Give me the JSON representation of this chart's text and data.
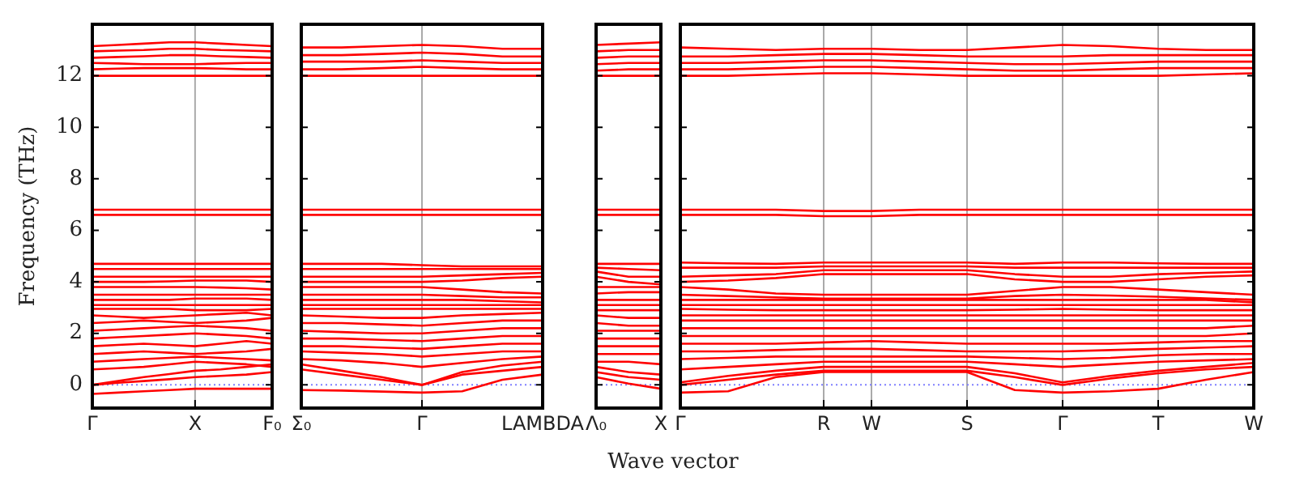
{
  "chart_data": [
    {
      "type": "line",
      "ylabel": "Frequency (THz)",
      "categories": [
        "Γ",
        null,
        null,
        null,
        "X",
        null,
        null,
        "F₀"
      ],
      "ylim": [
        -0.9,
        14
      ],
      "yticks": [
        0,
        2,
        4,
        6,
        8,
        10,
        12
      ],
      "marker": "none",
      "ref_lines": [
        {
          "axis": "x",
          "value": "X",
          "color": "#aaaaaa",
          "line_style": "solid"
        },
        {
          "axis": "y",
          "value": 0,
          "color": "#7f7fff",
          "line_style": "dotted"
        }
      ],
      "series": [
        {
          "color": "#ff0000",
          "values": [
            -0.35,
            -0.3,
            -0.25,
            -0.2,
            -0.15,
            -0.15,
            -0.15,
            -0.15
          ]
        },
        {
          "color": "#ff0000",
          "values": [
            0,
            0.08,
            0.15,
            0.22,
            0.3,
            0.35,
            0.4,
            0.5
          ]
        },
        {
          "color": "#ff0000",
          "values": [
            0,
            0.15,
            0.3,
            0.42,
            0.55,
            0.6,
            0.7,
            0.8
          ]
        },
        {
          "color": "#ff0000",
          "values": [
            0.6,
            0.65,
            0.7,
            0.8,
            0.9,
            0.85,
            0.8,
            0.7
          ]
        },
        {
          "color": "#ff0000",
          "values": [
            0.9,
            0.95,
            1.0,
            1.05,
            1.1,
            1.05,
            1.0,
            0.95
          ]
        },
        {
          "color": "#ff0000",
          "values": [
            1.2,
            1.25,
            1.3,
            1.25,
            1.2,
            1.25,
            1.3,
            1.4
          ]
        },
        {
          "color": "#ff0000",
          "values": [
            1.5,
            1.55,
            1.6,
            1.55,
            1.5,
            1.6,
            1.7,
            1.6
          ]
        },
        {
          "color": "#ff0000",
          "values": [
            1.8,
            1.85,
            1.9,
            1.95,
            2.0,
            1.95,
            1.9,
            1.8
          ]
        },
        {
          "color": "#ff0000",
          "values": [
            2.1,
            2.15,
            2.2,
            2.25,
            2.3,
            2.25,
            2.2,
            2.1
          ]
        },
        {
          "color": "#ff0000",
          "values": [
            2.4,
            2.45,
            2.5,
            2.45,
            2.4,
            2.45,
            2.5,
            2.6
          ]
        },
        {
          "color": "#ff0000",
          "values": [
            2.7,
            2.65,
            2.6,
            2.65,
            2.7,
            2.75,
            2.8,
            2.7
          ]
        },
        {
          "color": "#ff0000",
          "values": [
            2.95,
            2.95,
            2.95,
            2.95,
            2.9,
            2.9,
            2.9,
            2.95
          ]
        },
        {
          "color": "#ff0000",
          "values": [
            3.1,
            3.1,
            3.1,
            3.1,
            3.1,
            3.1,
            3.1,
            3.1
          ]
        },
        {
          "color": "#ff0000",
          "values": [
            3.3,
            3.3,
            3.3,
            3.3,
            3.35,
            3.35,
            3.35,
            3.3
          ]
        },
        {
          "color": "#ff0000",
          "values": [
            3.5,
            3.5,
            3.5,
            3.5,
            3.5,
            3.5,
            3.5,
            3.5
          ]
        },
        {
          "color": "#ff0000",
          "values": [
            3.8,
            3.8,
            3.8,
            3.8,
            3.8,
            3.78,
            3.75,
            3.7
          ]
        },
        {
          "color": "#ff0000",
          "values": [
            4.0,
            4.0,
            4.0,
            4.02,
            4.05,
            4.05,
            4.05,
            4.0
          ]
        },
        {
          "color": "#ff0000",
          "values": [
            4.2,
            4.2,
            4.2,
            4.2,
            4.2,
            4.2,
            4.2,
            4.2
          ]
        },
        {
          "color": "#ff0000",
          "values": [
            4.5,
            4.5,
            4.5,
            4.5,
            4.5,
            4.5,
            4.5,
            4.5
          ]
        },
        {
          "color": "#ff0000",
          "values": [
            4.7,
            4.7,
            4.7,
            4.7,
            4.7,
            4.7,
            4.7,
            4.7
          ]
        },
        {
          "color": "#ff0000",
          "values": [
            6.6,
            6.6,
            6.6,
            6.6,
            6.6,
            6.6,
            6.6,
            6.6
          ]
        },
        {
          "color": "#ff0000",
          "values": [
            6.8,
            6.8,
            6.8,
            6.8,
            6.8,
            6.8,
            6.8,
            6.8
          ]
        },
        {
          "color": "#ff0000",
          "values": [
            12.0,
            12.0,
            12.0,
            12.0,
            12.0,
            12.0,
            12.0,
            12.0
          ]
        },
        {
          "color": "#ff0000",
          "values": [
            12.25,
            12.28,
            12.3,
            12.3,
            12.3,
            12.28,
            12.25,
            12.25
          ]
        },
        {
          "color": "#ff0000",
          "values": [
            12.5,
            12.48,
            12.45,
            12.45,
            12.45,
            12.48,
            12.5,
            12.5
          ]
        },
        {
          "color": "#ff0000",
          "values": [
            12.7,
            12.73,
            12.76,
            12.8,
            12.8,
            12.76,
            12.73,
            12.7
          ]
        },
        {
          "color": "#ff0000",
          "values": [
            12.95,
            12.98,
            13.0,
            13.05,
            13.05,
            13.0,
            12.98,
            12.95
          ]
        },
        {
          "color": "#ff0000",
          "values": [
            13.15,
            13.2,
            13.25,
            13.3,
            13.3,
            13.25,
            13.2,
            13.15
          ]
        }
      ]
    },
    {
      "type": "line",
      "categories": [
        "Σ₀",
        null,
        null,
        "Γ",
        null,
        null,
        "LAMBDA"
      ],
      "ylim": [
        -0.9,
        14
      ],
      "yticks": [
        0,
        2,
        4,
        6,
        8,
        10,
        12
      ],
      "tick_labels": "x",
      "marker": "none",
      "ref_lines": [
        {
          "axis": "x",
          "value": "Γ",
          "color": "#aaaaaa",
          "line_style": "solid"
        },
        {
          "axis": "y",
          "value": 0,
          "color": "#7f7fff",
          "line_style": "dotted"
        }
      ],
      "series": [
        {
          "color": "#ff0000",
          "values": [
            -0.2,
            -0.22,
            -0.26,
            -0.3,
            -0.25,
            0.2,
            0.4
          ]
        },
        {
          "color": "#ff0000",
          "values": [
            0.6,
            0.4,
            0.2,
            0,
            0.4,
            0.55,
            0.7
          ]
        },
        {
          "color": "#ff0000",
          "values": [
            0.8,
            0.55,
            0.3,
            0,
            0.5,
            0.75,
            0.9
          ]
        },
        {
          "color": "#ff0000",
          "values": [
            1.0,
            0.95,
            0.85,
            0.7,
            0.85,
            1.0,
            1.1
          ]
        },
        {
          "color": "#ff0000",
          "values": [
            1.3,
            1.25,
            1.2,
            1.1,
            1.2,
            1.3,
            1.3
          ]
        },
        {
          "color": "#ff0000",
          "values": [
            1.5,
            1.5,
            1.45,
            1.4,
            1.5,
            1.6,
            1.6
          ]
        },
        {
          "color": "#ff0000",
          "values": [
            1.8,
            1.8,
            1.75,
            1.7,
            1.8,
            1.9,
            1.9
          ]
        },
        {
          "color": "#ff0000",
          "values": [
            2.1,
            2.05,
            2.0,
            2.0,
            2.1,
            2.2,
            2.2
          ]
        },
        {
          "color": "#ff0000",
          "values": [
            2.4,
            2.4,
            2.35,
            2.3,
            2.4,
            2.5,
            2.5
          ]
        },
        {
          "color": "#ff0000",
          "values": [
            2.7,
            2.65,
            2.6,
            2.6,
            2.7,
            2.75,
            2.8
          ]
        },
        {
          "color": "#ff0000",
          "values": [
            2.95,
            2.95,
            2.95,
            2.95,
            2.95,
            2.95,
            2.95
          ]
        },
        {
          "color": "#ff0000",
          "values": [
            3.1,
            3.1,
            3.1,
            3.1,
            3.1,
            3.1,
            3.1
          ]
        },
        {
          "color": "#ff0000",
          "values": [
            3.3,
            3.3,
            3.3,
            3.3,
            3.3,
            3.25,
            3.2
          ]
        },
        {
          "color": "#ff0000",
          "values": [
            3.5,
            3.5,
            3.5,
            3.5,
            3.45,
            3.4,
            3.4
          ]
        },
        {
          "color": "#ff0000",
          "values": [
            3.8,
            3.8,
            3.8,
            3.8,
            3.7,
            3.6,
            3.55
          ]
        },
        {
          "color": "#ff0000",
          "values": [
            4.0,
            4.0,
            4.0,
            4.0,
            4.05,
            4.15,
            4.2
          ]
        },
        {
          "color": "#ff0000",
          "values": [
            4.2,
            4.2,
            4.2,
            4.2,
            4.25,
            4.3,
            4.35
          ]
        },
        {
          "color": "#ff0000",
          "values": [
            4.5,
            4.5,
            4.5,
            4.5,
            4.5,
            4.5,
            4.5
          ]
        },
        {
          "color": "#ff0000",
          "values": [
            4.7,
            4.7,
            4.7,
            4.65,
            4.6,
            4.6,
            4.6
          ]
        },
        {
          "color": "#ff0000",
          "values": [
            6.6,
            6.6,
            6.6,
            6.6,
            6.6,
            6.6,
            6.6
          ]
        },
        {
          "color": "#ff0000",
          "values": [
            6.8,
            6.8,
            6.8,
            6.8,
            6.8,
            6.8,
            6.8
          ]
        },
        {
          "color": "#ff0000",
          "values": [
            12.0,
            12.0,
            12.0,
            12.0,
            12.0,
            12.0,
            12.0
          ]
        },
        {
          "color": "#ff0000",
          "values": [
            12.25,
            12.25,
            12.3,
            12.35,
            12.3,
            12.25,
            12.25
          ]
        },
        {
          "color": "#ff0000",
          "values": [
            12.55,
            12.55,
            12.55,
            12.6,
            12.55,
            12.5,
            12.5
          ]
        },
        {
          "color": "#ff0000",
          "values": [
            12.8,
            12.8,
            12.85,
            12.9,
            12.85,
            12.75,
            12.75
          ]
        },
        {
          "color": "#ff0000",
          "values": [
            13.1,
            13.1,
            13.15,
            13.2,
            13.15,
            13.05,
            13.05
          ]
        }
      ]
    },
    {
      "type": "line",
      "categories": [
        "Λ₀",
        null,
        "X"
      ],
      "ylim": [
        -0.9,
        14
      ],
      "yticks": [
        0,
        2,
        4,
        6,
        8,
        10,
        12
      ],
      "tick_labels": "x",
      "marker": "none",
      "ref_lines": [
        {
          "axis": "y",
          "value": 0,
          "color": "#7f7fff",
          "line_style": "dotted"
        }
      ],
      "series": [
        {
          "color": "#ff0000",
          "values": [
            0.3,
            0.05,
            -0.15
          ]
        },
        {
          "color": "#ff0000",
          "values": [
            0.5,
            0.3,
            0.2
          ]
        },
        {
          "color": "#ff0000",
          "values": [
            0.7,
            0.5,
            0.4
          ]
        },
        {
          "color": "#ff0000",
          "values": [
            0.9,
            0.9,
            0.8
          ]
        },
        {
          "color": "#ff0000",
          "values": [
            1.2,
            1.2,
            1.2
          ]
        },
        {
          "color": "#ff0000",
          "values": [
            1.5,
            1.5,
            1.5
          ]
        },
        {
          "color": "#ff0000",
          "values": [
            1.8,
            1.8,
            1.8
          ]
        },
        {
          "color": "#ff0000",
          "values": [
            2.1,
            2.1,
            2.1
          ]
        },
        {
          "color": "#ff0000",
          "values": [
            2.4,
            2.3,
            2.3
          ]
        },
        {
          "color": "#ff0000",
          "values": [
            2.7,
            2.6,
            2.6
          ]
        },
        {
          "color": "#ff0000",
          "values": [
            2.9,
            2.9,
            2.9
          ]
        },
        {
          "color": "#ff0000",
          "values": [
            3.1,
            3.1,
            3.1
          ]
        },
        {
          "color": "#ff0000",
          "values": [
            3.3,
            3.3,
            3.3
          ]
        },
        {
          "color": "#ff0000",
          "values": [
            3.55,
            3.6,
            3.6
          ]
        },
        {
          "color": "#ff0000",
          "values": [
            3.8,
            3.8,
            3.8
          ]
        },
        {
          "color": "#ff0000",
          "values": [
            4.2,
            4.0,
            3.9
          ]
        },
        {
          "color": "#ff0000",
          "values": [
            4.4,
            4.2,
            4.2
          ]
        },
        {
          "color": "#ff0000",
          "values": [
            4.55,
            4.5,
            4.45
          ]
        },
        {
          "color": "#ff0000",
          "values": [
            4.7,
            4.7,
            4.7
          ]
        },
        {
          "color": "#ff0000",
          "values": [
            6.6,
            6.6,
            6.6
          ]
        },
        {
          "color": "#ff0000",
          "values": [
            6.8,
            6.8,
            6.8
          ]
        },
        {
          "color": "#ff0000",
          "values": [
            12.0,
            12.0,
            12.0
          ]
        },
        {
          "color": "#ff0000",
          "values": [
            12.2,
            12.25,
            12.25
          ]
        },
        {
          "color": "#ff0000",
          "values": [
            12.45,
            12.5,
            12.5
          ]
        },
        {
          "color": "#ff0000",
          "values": [
            12.7,
            12.75,
            12.75
          ]
        },
        {
          "color": "#ff0000",
          "values": [
            12.95,
            13.0,
            13.0
          ]
        },
        {
          "color": "#ff0000",
          "values": [
            13.2,
            13.25,
            13.3
          ]
        }
      ]
    },
    {
      "type": "line",
      "xlabel": "Wave vector",
      "categories": [
        "Γ",
        null,
        null,
        "R",
        "W",
        null,
        "S",
        null,
        "Γ",
        null,
        "T",
        null,
        "W"
      ],
      "ylim": [
        -0.9,
        14
      ],
      "yticks": [
        0,
        2,
        4,
        6,
        8,
        10,
        12
      ],
      "tick_labels": "x",
      "grid": "x",
      "marker": "none",
      "ref_lines": [
        {
          "axis": "y",
          "value": 0,
          "color": "#7f7fff",
          "line_style": "dotted"
        }
      ],
      "series": [
        {
          "color": "#ff0000",
          "values": [
            -0.3,
            -0.25,
            0.3,
            0.5,
            0.5,
            0.5,
            0.5,
            -0.2,
            -0.3,
            -0.25,
            -0.15,
            0.2,
            0.5
          ]
        },
        {
          "color": "#ff0000",
          "values": [
            0,
            0.2,
            0.4,
            0.55,
            0.55,
            0.55,
            0.55,
            0.3,
            0,
            0.25,
            0.45,
            0.6,
            0.7
          ]
        },
        {
          "color": "#ff0000",
          "values": [
            0.1,
            0.35,
            0.55,
            0.7,
            0.7,
            0.7,
            0.7,
            0.45,
            0.1,
            0.35,
            0.55,
            0.7,
            0.85
          ]
        },
        {
          "color": "#ff0000",
          "values": [
            0.6,
            0.7,
            0.8,
            0.9,
            0.9,
            0.9,
            0.9,
            0.8,
            0.7,
            0.8,
            0.9,
            0.95,
            1.0
          ]
        },
        {
          "color": "#ff0000",
          "values": [
            1.0,
            1.05,
            1.1,
            1.1,
            1.1,
            1.1,
            1.1,
            1.05,
            1.0,
            1.05,
            1.15,
            1.2,
            1.2
          ]
        },
        {
          "color": "#ff0000",
          "values": [
            1.3,
            1.3,
            1.35,
            1.4,
            1.4,
            1.35,
            1.3,
            1.3,
            1.3,
            1.35,
            1.4,
            1.45,
            1.5
          ]
        },
        {
          "color": "#ff0000",
          "values": [
            1.6,
            1.6,
            1.6,
            1.65,
            1.7,
            1.65,
            1.6,
            1.6,
            1.6,
            1.6,
            1.65,
            1.7,
            1.7
          ]
        },
        {
          "color": "#ff0000",
          "values": [
            1.9,
            1.9,
            1.9,
            1.9,
            1.9,
            1.9,
            1.9,
            1.9,
            1.9,
            1.9,
            1.9,
            1.9,
            2.0
          ]
        },
        {
          "color": "#ff0000",
          "values": [
            2.2,
            2.2,
            2.2,
            2.2,
            2.2,
            2.2,
            2.2,
            2.2,
            2.2,
            2.2,
            2.2,
            2.2,
            2.3
          ]
        },
        {
          "color": "#ff0000",
          "values": [
            2.5,
            2.5,
            2.5,
            2.5,
            2.5,
            2.5,
            2.5,
            2.5,
            2.5,
            2.5,
            2.5,
            2.5,
            2.5
          ]
        },
        {
          "color": "#ff0000",
          "values": [
            2.7,
            2.7,
            2.7,
            2.7,
            2.7,
            2.7,
            2.7,
            2.7,
            2.7,
            2.7,
            2.7,
            2.7,
            2.7
          ]
        },
        {
          "color": "#ff0000",
          "values": [
            2.95,
            2.92,
            2.9,
            2.9,
            2.9,
            2.9,
            2.9,
            2.92,
            2.95,
            2.92,
            2.9,
            2.9,
            2.9
          ]
        },
        {
          "color": "#ff0000",
          "values": [
            3.1,
            3.1,
            3.1,
            3.1,
            3.1,
            3.1,
            3.1,
            3.1,
            3.1,
            3.1,
            3.1,
            3.1,
            3.1
          ]
        },
        {
          "color": "#ff0000",
          "values": [
            3.3,
            3.3,
            3.3,
            3.3,
            3.3,
            3.3,
            3.3,
            3.3,
            3.3,
            3.3,
            3.3,
            3.3,
            3.2
          ]
        },
        {
          "color": "#ff0000",
          "values": [
            3.5,
            3.45,
            3.4,
            3.35,
            3.35,
            3.35,
            3.35,
            3.45,
            3.5,
            3.47,
            3.42,
            3.36,
            3.3
          ]
        },
        {
          "color": "#ff0000",
          "values": [
            3.8,
            3.7,
            3.55,
            3.5,
            3.5,
            3.5,
            3.5,
            3.65,
            3.8,
            3.8,
            3.7,
            3.6,
            3.5
          ]
        },
        {
          "color": "#ff0000",
          "values": [
            4.0,
            4.05,
            4.15,
            4.3,
            4.3,
            4.3,
            4.3,
            4.1,
            4.0,
            4.0,
            4.1,
            4.2,
            4.25
          ]
        },
        {
          "color": "#ff0000",
          "values": [
            4.2,
            4.25,
            4.3,
            4.45,
            4.45,
            4.45,
            4.45,
            4.3,
            4.2,
            4.2,
            4.3,
            4.35,
            4.4
          ]
        },
        {
          "color": "#ff0000",
          "values": [
            4.55,
            4.55,
            4.55,
            4.6,
            4.6,
            4.6,
            4.6,
            4.55,
            4.55,
            4.55,
            4.55,
            4.55,
            4.55
          ]
        },
        {
          "color": "#ff0000",
          "values": [
            4.75,
            4.72,
            4.7,
            4.75,
            4.75,
            4.75,
            4.75,
            4.7,
            4.75,
            4.75,
            4.72,
            4.7,
            4.7
          ]
        },
        {
          "color": "#ff0000",
          "values": [
            6.6,
            6.6,
            6.6,
            6.55,
            6.55,
            6.6,
            6.6,
            6.6,
            6.6,
            6.6,
            6.6,
            6.6,
            6.6
          ]
        },
        {
          "color": "#ff0000",
          "values": [
            6.8,
            6.8,
            6.8,
            6.75,
            6.75,
            6.8,
            6.8,
            6.8,
            6.8,
            6.8,
            6.8,
            6.8,
            6.8
          ]
        },
        {
          "color": "#ff0000",
          "values": [
            12.0,
            12.0,
            12.05,
            12.1,
            12.1,
            12.05,
            12.0,
            12.0,
            12.0,
            12.0,
            12.0,
            12.05,
            12.1
          ]
        },
        {
          "color": "#ff0000",
          "values": [
            12.25,
            12.25,
            12.3,
            12.35,
            12.35,
            12.3,
            12.25,
            12.2,
            12.2,
            12.25,
            12.3,
            12.3,
            12.3
          ]
        },
        {
          "color": "#ff0000",
          "values": [
            12.5,
            12.5,
            12.55,
            12.6,
            12.6,
            12.55,
            12.5,
            12.45,
            12.45,
            12.5,
            12.55,
            12.55,
            12.55
          ]
        },
        {
          "color": "#ff0000",
          "values": [
            12.75,
            12.75,
            12.8,
            12.85,
            12.85,
            12.8,
            12.75,
            12.75,
            12.75,
            12.8,
            12.8,
            12.8,
            12.8
          ]
        },
        {
          "color": "#ff0000",
          "values": [
            13.1,
            13.05,
            13.0,
            13.05,
            13.05,
            13.0,
            13.0,
            13.1,
            13.2,
            13.15,
            13.05,
            13.0,
            13.0
          ]
        }
      ]
    }
  ]
}
